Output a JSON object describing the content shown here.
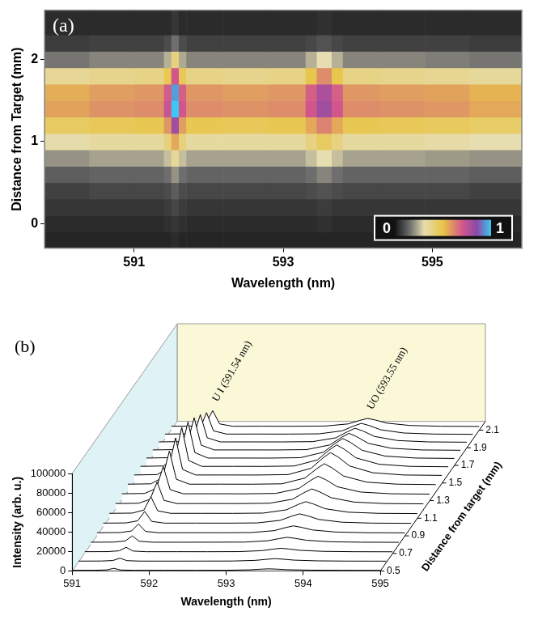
{
  "chart_data": [
    {
      "type": "heatmap",
      "title": "(a)",
      "x_label": "Wavelength (nm)",
      "y_label": "Distance from Target (mm)",
      "xlim": [
        589.8,
        596.2
      ],
      "xticks": [
        591,
        593,
        595
      ],
      "ylim": [
        -0.3,
        2.6
      ],
      "yticks": [
        0,
        1,
        2
      ],
      "grid": false,
      "heatmap": {
        "x_edges": [
          589.8,
          590.4,
          591.0,
          591.4,
          591.5,
          591.6,
          591.7,
          592.2,
          592.8,
          593.3,
          593.45,
          593.65,
          593.8,
          594.3,
          594.9,
          595.5,
          596.2
        ],
        "y_edges": [
          -0.3,
          -0.1,
          0.1,
          0.3,
          0.5,
          0.7,
          0.9,
          1.1,
          1.3,
          1.5,
          1.7,
          1.9,
          2.1,
          2.3,
          2.6
        ],
        "cells": [
          [
            0.02,
            0.02,
            0.02,
            0.02,
            0.03,
            0.02,
            0.02,
            0.02,
            0.02,
            0.02,
            0.02,
            0.02,
            0.02,
            0.02,
            0.02,
            0.02
          ],
          [
            0.03,
            0.03,
            0.03,
            0.04,
            0.05,
            0.04,
            0.03,
            0.03,
            0.03,
            0.03,
            0.04,
            0.03,
            0.03,
            0.03,
            0.03,
            0.03
          ],
          [
            0.05,
            0.05,
            0.05,
            0.06,
            0.08,
            0.06,
            0.05,
            0.05,
            0.05,
            0.05,
            0.06,
            0.05,
            0.05,
            0.05,
            0.05,
            0.05
          ],
          [
            0.07,
            0.08,
            0.08,
            0.09,
            0.12,
            0.09,
            0.08,
            0.08,
            0.08,
            0.09,
            0.1,
            0.09,
            0.08,
            0.08,
            0.08,
            0.07
          ],
          [
            0.12,
            0.13,
            0.13,
            0.15,
            0.2,
            0.15,
            0.13,
            0.13,
            0.13,
            0.15,
            0.18,
            0.15,
            0.13,
            0.13,
            0.13,
            0.12
          ],
          [
            0.2,
            0.22,
            0.22,
            0.26,
            0.35,
            0.26,
            0.22,
            0.22,
            0.22,
            0.26,
            0.3,
            0.26,
            0.22,
            0.22,
            0.21,
            0.2
          ],
          [
            0.31,
            0.33,
            0.33,
            0.4,
            0.55,
            0.4,
            0.33,
            0.33,
            0.33,
            0.39,
            0.45,
            0.39,
            0.33,
            0.33,
            0.32,
            0.3
          ],
          [
            0.45,
            0.47,
            0.48,
            0.58,
            0.8,
            0.57,
            0.48,
            0.47,
            0.48,
            0.55,
            0.62,
            0.55,
            0.48,
            0.47,
            0.46,
            0.44
          ],
          [
            0.56,
            0.59,
            0.6,
            0.72,
            1.0,
            0.7,
            0.6,
            0.59,
            0.6,
            0.7,
            0.8,
            0.7,
            0.6,
            0.59,
            0.58,
            0.55
          ],
          [
            0.54,
            0.57,
            0.58,
            0.69,
            0.95,
            0.68,
            0.58,
            0.57,
            0.58,
            0.68,
            0.78,
            0.68,
            0.58,
            0.57,
            0.56,
            0.53
          ],
          [
            0.35,
            0.37,
            0.38,
            0.48,
            0.7,
            0.47,
            0.38,
            0.37,
            0.38,
            0.49,
            0.6,
            0.49,
            0.38,
            0.37,
            0.36,
            0.34
          ],
          [
            0.16,
            0.18,
            0.18,
            0.24,
            0.4,
            0.23,
            0.18,
            0.18,
            0.18,
            0.24,
            0.3,
            0.24,
            0.18,
            0.18,
            0.17,
            0.16
          ],
          [
            0.06,
            0.07,
            0.07,
            0.09,
            0.15,
            0.09,
            0.07,
            0.07,
            0.07,
            0.08,
            0.1,
            0.08,
            0.07,
            0.07,
            0.07,
            0.06
          ],
          [
            0.03,
            0.03,
            0.03,
            0.03,
            0.05,
            0.03,
            0.03,
            0.03,
            0.03,
            0.03,
            0.04,
            0.03,
            0.03,
            0.03,
            0.03,
            0.03
          ]
        ]
      },
      "colorbar": {
        "range": [
          0,
          1
        ],
        "ticks": [
          0,
          1
        ]
      }
    },
    {
      "type": "waterfall",
      "title": "(b)",
      "x_label": "Wavelength (nm)",
      "y_label": "Intensity (arb. u.)",
      "z_label": "Distance from target (mm)",
      "xlim": [
        591,
        595
      ],
      "xticks": [
        591,
        592,
        593,
        594,
        595
      ],
      "ylim": [
        0,
        100000
      ],
      "yticks": [
        0,
        20000,
        40000,
        60000,
        80000,
        100000
      ],
      "zlim": [
        0.5,
        2.2
      ],
      "zticks": [
        0.5,
        0.7,
        0.9,
        1.1,
        1.3,
        1.5,
        1.7,
        1.9,
        2.1
      ],
      "grid": false,
      "color": "#000000",
      "x": [
        591.0,
        591.3,
        591.45,
        591.54,
        591.63,
        591.8,
        592.2,
        592.6,
        593.0,
        593.3,
        593.45,
        593.55,
        593.65,
        593.8,
        594.1,
        594.5,
        595.0
      ],
      "series": [
        {
          "distance": 0.5,
          "values": [
            800,
            840,
            1200,
            2800,
            1100,
            800,
            810,
            790,
            840,
            1250,
            1925,
            2300,
            2000,
            1400,
            950,
            800,
            760
          ]
        },
        {
          "distance": 0.6,
          "values": [
            1200,
            1260,
            1800,
            4200,
            1650,
            1200,
            1190,
            1210,
            1260,
            1950,
            3075,
            3700,
            3200,
            2200,
            1450,
            1200,
            1140
          ]
        },
        {
          "distance": 0.7,
          "values": [
            1800,
            1890,
            2700,
            6300,
            2475,
            1800,
            1820,
            1790,
            1890,
            2850,
            4425,
            5300,
            4600,
            3200,
            2150,
            1800,
            1710
          ]
        },
        {
          "distance": 0.8,
          "values": [
            2500,
            2625,
            3800,
            9000,
            3475,
            2500,
            2480,
            2520,
            2625,
            4000,
            6250,
            7500,
            6500,
            4500,
            3000,
            2500,
            2375
          ]
        },
        {
          "distance": 0.9,
          "values": [
            3200,
            3360,
            5000,
            12200,
            4550,
            3200,
            3220,
            3190,
            3360,
            5300,
            8450,
            10200,
            8800,
            6000,
            3900,
            3200,
            3040
          ]
        },
        {
          "distance": 1.0,
          "values": [
            4000,
            4200,
            6400,
            16000,
            5800,
            4000,
            4030,
            3980,
            4200,
            6850,
            11125,
            13500,
            11600,
            7800,
            4950,
            4000,
            3800
          ]
        },
        {
          "distance": 1.1,
          "values": [
            5000,
            5250,
            8400,
            22000,
            7550,
            5000,
            5020,
            4970,
            5250,
            8600,
            14000,
            17000,
            14600,
            9800,
            6200,
            5000,
            4750
          ]
        },
        {
          "distance": 1.2,
          "values": [
            6000,
            6300,
            10400,
            28000,
            9300,
            6000,
            6030,
            5980,
            6300,
            10500,
            17250,
            21000,
            18000,
            12000,
            7500,
            6000,
            5700
          ]
        },
        {
          "distance": 1.3,
          "values": [
            7000,
            7350,
            12600,
            35000,
            11200,
            7000,
            7020,
            6980,
            7350,
            12400,
            20500,
            25000,
            21400,
            14200,
            8800,
            7000,
            6650
          ]
        },
        {
          "distance": 1.4,
          "values": [
            7800,
            8190,
            14600,
            41800,
            12900,
            7800,
            7830,
            7770,
            8190,
            14100,
            23550,
            28800,
            24600,
            16200,
            9900,
            7800,
            7410
          ]
        },
        {
          "distance": 1.5,
          "values": [
            8200,
            8610,
            15800,
            46200,
            13900,
            8200,
            8220,
            8180,
            8610,
            15100,
            25450,
            31200,
            26600,
            17400,
            10500,
            8200,
            7790
          ]
        },
        {
          "distance": 1.6,
          "values": [
            8000,
            8400,
            16000,
            48000,
            14000,
            8000,
            8030,
            7970,
            8400,
            14600,
            24500,
            30000,
            25600,
            16800,
            10200,
            8000,
            7600
          ]
        },
        {
          "distance": 1.7,
          "values": [
            7500,
            7875,
            14900,
            44500,
            13050,
            7500,
            7520,
            7480,
            7875,
            13500,
            22500,
            27500,
            23500,
            15500,
            9500,
            7500,
            7125
          ]
        },
        {
          "distance": 1.8,
          "values": [
            6800,
            7140,
            13400,
            39800,
            11750,
            6800,
            6820,
            6780,
            7140,
            11900,
            19550,
            23800,
            20400,
            13600,
            8500,
            6800,
            6460
          ]
        },
        {
          "distance": 1.9,
          "values": [
            6000,
            6300,
            11600,
            34000,
            10200,
            6000,
            6020,
            5980,
            6300,
            10200,
            16500,
            20000,
            17200,
            11600,
            7400,
            6000,
            5700
          ]
        },
        {
          "distance": 2.0,
          "values": [
            5000,
            5250,
            9400,
            27000,
            8300,
            5000,
            5020,
            4980,
            5250,
            8300,
            13250,
            16000,
            13800,
            9400,
            6100,
            5000,
            4750
          ]
        },
        {
          "distance": 2.1,
          "values": [
            4000,
            4200,
            7200,
            20000,
            6400,
            4000,
            4020,
            3980,
            4200,
            6400,
            10000,
            12000,
            10400,
            7200,
            4800,
            4000,
            3800
          ]
        }
      ],
      "annotations": [
        {
          "text": "U I (591.54 nm)",
          "x": 591.54
        },
        {
          "text": "UO (593.55 nm)",
          "x": 593.55
        }
      ]
    }
  ]
}
